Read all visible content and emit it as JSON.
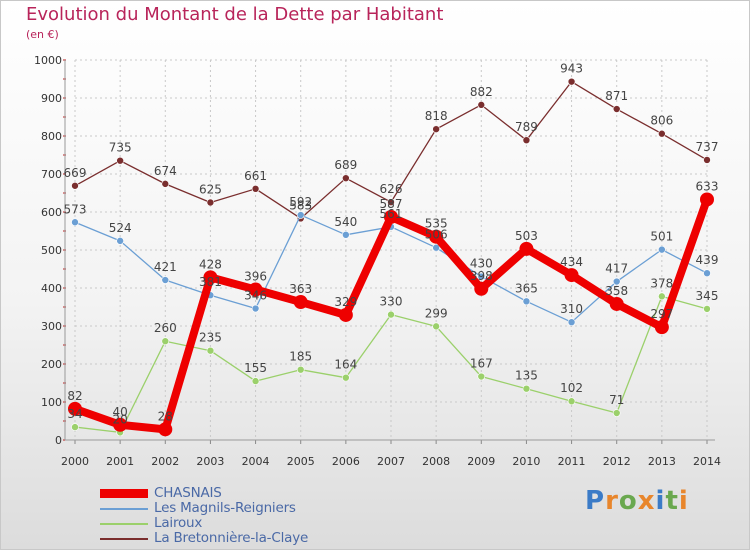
{
  "header": {
    "title": "Evolution du Montant de la Dette par Habitant",
    "unit": "(en €)"
  },
  "logo": {
    "text": "Proxiti",
    "letter_colors": [
      "#3b7bc7",
      "#e8862c",
      "#6aa84f",
      "#e8862c",
      "#3b7bc7",
      "#6aa84f",
      "#e8862c"
    ]
  },
  "chart_data": {
    "type": "line",
    "title": "Evolution du Montant de la Dette par Habitant",
    "ylabel": "(en €)",
    "xlabel": "",
    "x": [
      "2000",
      "2001",
      "2002",
      "2003",
      "2004",
      "2005",
      "2006",
      "2007",
      "2008",
      "2009",
      "2010",
      "2011",
      "2012",
      "2013",
      "2014"
    ],
    "ylim": [
      0,
      1000
    ],
    "yticks": [
      "0",
      "100",
      "200",
      "300",
      "400",
      "500",
      "600",
      "700",
      "800",
      "900",
      "1000"
    ],
    "grid": true,
    "legend_position": "bottom-left",
    "series": [
      {
        "name": "CHASNAIS",
        "color": "#ee0000",
        "values": [
          82,
          40,
          28,
          428,
          396,
          363,
          329,
          587,
          535,
          398,
          503,
          434,
          358,
          297,
          633
        ],
        "labels": [
          "82",
          "40",
          "28",
          "428",
          "396",
          "363",
          "329",
          "587",
          "535",
          "398",
          "503",
          "434",
          "358",
          "297",
          "633"
        ]
      },
      {
        "name": "Les Magnils-Reigniers",
        "color": "#6b9fd4",
        "values": [
          573,
          524,
          421,
          381,
          346,
          592,
          540,
          561,
          506,
          430,
          365,
          310,
          417,
          501,
          439
        ],
        "labels": [
          "573",
          "524",
          "421",
          "381",
          "346",
          "592",
          "540",
          "561",
          "506",
          "430",
          "365",
          "310",
          "417",
          "501",
          "439"
        ]
      },
      {
        "name": "Lairoux",
        "color": "#9bd06b",
        "values": [
          34,
          20,
          260,
          235,
          155,
          185,
          164,
          330,
          299,
          167,
          135,
          102,
          71,
          378,
          345
        ],
        "labels": [
          "34",
          "20",
          "260",
          "235",
          "155",
          "185",
          "164",
          "330",
          "299",
          "167",
          "135",
          "102",
          "71",
          "378",
          "345"
        ]
      },
      {
        "name": "La Bretonnière-la-Claye",
        "color": "#7a2e2e",
        "values": [
          669,
          735,
          674,
          625,
          661,
          583,
          689,
          626,
          818,
          882,
          789,
          943,
          871,
          806,
          737
        ],
        "labels": [
          "669",
          "735",
          "674",
          "625",
          "661",
          "583",
          "689",
          "626",
          "818",
          "882",
          "789",
          "943",
          "871",
          "806",
          "737"
        ]
      }
    ]
  }
}
